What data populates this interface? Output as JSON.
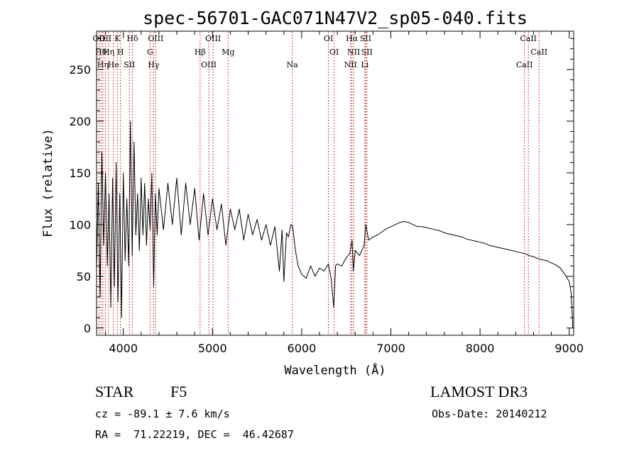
{
  "chart_data": {
    "type": "line",
    "title": "spec-56701-GAC071N47V2_sp05-040.fits",
    "xlabel": "Wavelength (Å)",
    "ylabel": "Flux (relative)",
    "xlim": [
      3700,
      9050
    ],
    "ylim": [
      -7,
      287
    ],
    "xticks": [
      4000,
      5000,
      6000,
      7000,
      8000,
      9000
    ],
    "xtick_labels": [
      "4000",
      "5000",
      "6000",
      "7000",
      "8000",
      "9000"
    ],
    "yticks": [
      0,
      50,
      100,
      150,
      200,
      250
    ],
    "ytick_labels": [
      "0",
      "50",
      "100",
      "150",
      "200",
      "250"
    ],
    "series": [
      {
        "name": "spectrum",
        "points": [
          [
            3700,
            55
          ],
          [
            3720,
            140
          ],
          [
            3740,
            30
          ],
          [
            3760,
            170
          ],
          [
            3780,
            80
          ],
          [
            3800,
            150
          ],
          [
            3820,
            60
          ],
          [
            3840,
            130
          ],
          [
            3860,
            20
          ],
          [
            3880,
            145
          ],
          [
            3900,
            40
          ],
          [
            3920,
            160
          ],
          [
            3940,
            25
          ],
          [
            3960,
            130
          ],
          [
            3980,
            10
          ],
          [
            4000,
            150
          ],
          [
            4020,
            65
          ],
          [
            4040,
            125
          ],
          [
            4060,
            60
          ],
          [
            4080,
            200
          ],
          [
            4100,
            70
          ],
          [
            4120,
            180
          ],
          [
            4140,
            90
          ],
          [
            4160,
            130
          ],
          [
            4180,
            75
          ],
          [
            4200,
            145
          ],
          [
            4220,
            90
          ],
          [
            4240,
            140
          ],
          [
            4260,
            80
          ],
          [
            4280,
            125
          ],
          [
            4300,
            95
          ],
          [
            4320,
            150
          ],
          [
            4340,
            40
          ],
          [
            4360,
            130
          ],
          [
            4380,
            90
          ],
          [
            4400,
            135
          ],
          [
            4450,
            95
          ],
          [
            4500,
            140
          ],
          [
            4550,
            100
          ],
          [
            4600,
            145
          ],
          [
            4650,
            90
          ],
          [
            4700,
            140
          ],
          [
            4750,
            100
          ],
          [
            4800,
            135
          ],
          [
            4850,
            85
          ],
          [
            4900,
            130
          ],
          [
            4950,
            90
          ],
          [
            5000,
            125
          ],
          [
            5050,
            95
          ],
          [
            5100,
            120
          ],
          [
            5150,
            80
          ],
          [
            5200,
            115
          ],
          [
            5250,
            95
          ],
          [
            5300,
            115
          ],
          [
            5350,
            85
          ],
          [
            5400,
            110
          ],
          [
            5450,
            90
          ],
          [
            5500,
            105
          ],
          [
            5550,
            85
          ],
          [
            5600,
            100
          ],
          [
            5650,
            80
          ],
          [
            5700,
            98
          ],
          [
            5750,
            55
          ],
          [
            5780,
            95
          ],
          [
            5800,
            45
          ],
          [
            5830,
            92
          ],
          [
            5850,
            88
          ],
          [
            5880,
            100
          ],
          [
            5900,
            98
          ],
          [
            5930,
            75
          ],
          [
            5960,
            60
          ],
          [
            6000,
            52
          ],
          [
            6050,
            48
          ],
          [
            6100,
            60
          ],
          [
            6150,
            50
          ],
          [
            6200,
            58
          ],
          [
            6250,
            55
          ],
          [
            6300,
            62
          ],
          [
            6330,
            48
          ],
          [
            6360,
            20
          ],
          [
            6380,
            60
          ],
          [
            6400,
            62
          ],
          [
            6450,
            60
          ],
          [
            6500,
            68
          ],
          [
            6540,
            72
          ],
          [
            6565,
            85
          ],
          [
            6580,
            55
          ],
          [
            6600,
            75
          ],
          [
            6650,
            70
          ],
          [
            6700,
            80
          ],
          [
            6720,
            100
          ],
          [
            6750,
            85
          ],
          [
            6800,
            88
          ],
          [
            6850,
            90
          ],
          [
            6900,
            93
          ],
          [
            6950,
            96
          ],
          [
            7000,
            98
          ],
          [
            7050,
            100
          ],
          [
            7100,
            102
          ],
          [
            7150,
            103
          ],
          [
            7200,
            102
          ],
          [
            7250,
            100
          ],
          [
            7300,
            98
          ],
          [
            7350,
            98
          ],
          [
            7400,
            97
          ],
          [
            7450,
            96
          ],
          [
            7500,
            95
          ],
          [
            7550,
            94
          ],
          [
            7600,
            92
          ],
          [
            7650,
            91
          ],
          [
            7700,
            90
          ],
          [
            7750,
            89
          ],
          [
            7800,
            88
          ],
          [
            7850,
            86
          ],
          [
            7900,
            85
          ],
          [
            7950,
            84
          ],
          [
            8000,
            83
          ],
          [
            8050,
            82
          ],
          [
            8100,
            80
          ],
          [
            8150,
            79
          ],
          [
            8200,
            78
          ],
          [
            8250,
            77
          ],
          [
            8300,
            76
          ],
          [
            8350,
            75
          ],
          [
            8400,
            74
          ],
          [
            8450,
            73
          ],
          [
            8500,
            72
          ],
          [
            8550,
            70
          ],
          [
            8600,
            69
          ],
          [
            8650,
            67
          ],
          [
            8700,
            66
          ],
          [
            8750,
            65
          ],
          [
            8800,
            63
          ],
          [
            8850,
            61
          ],
          [
            8900,
            58
          ],
          [
            8950,
            52
          ],
          [
            9000,
            45
          ],
          [
            9020,
            35
          ],
          [
            9030,
            20
          ],
          [
            9040,
            0
          ]
        ]
      }
    ],
    "lines": [
      {
        "wl": 3727,
        "label": "OII"
      },
      {
        "wl": 3750,
        "label": "Hθ"
      },
      {
        "wl": 3771,
        "label": "Hη"
      },
      {
        "wl": 3798,
        "label": "OII"
      },
      {
        "wl": 3835,
        "label": "Hη"
      },
      {
        "wl": 3889,
        "label": "He"
      },
      {
        "wl": 3934,
        "label": "K"
      },
      {
        "wl": 3968,
        "label": "H"
      },
      {
        "wl": 4068,
        "label": "SII"
      },
      {
        "wl": 4102,
        "label": "Hδ"
      },
      {
        "wl": 4300,
        "label": "G"
      },
      {
        "wl": 4340,
        "label": "Hγ"
      },
      {
        "wl": 4363,
        "label": "OIII"
      },
      {
        "wl": 4861,
        "label": "Hβ"
      },
      {
        "wl": 4959,
        "label": "OIII"
      },
      {
        "wl": 5007,
        "label": "OIII"
      },
      {
        "wl": 5175,
        "label": "Mg"
      },
      {
        "wl": 5894,
        "label": "Na"
      },
      {
        "wl": 6300,
        "label": "OI"
      },
      {
        "wl": 6364,
        "label": "OI"
      },
      {
        "wl": 6548,
        "label": "NII"
      },
      {
        "wl": 6563,
        "label": "Hα"
      },
      {
        "wl": 6583,
        "label": "NII"
      },
      {
        "wl": 6708,
        "label": "Li"
      },
      {
        "wl": 6716,
        "label": "SII"
      },
      {
        "wl": 6731,
        "label": "SII"
      },
      {
        "wl": 8498,
        "label": "CaII"
      },
      {
        "wl": 8542,
        "label": "CaII"
      },
      {
        "wl": 8662,
        "label": "CaII"
      }
    ]
  },
  "info": {
    "class": "STAR",
    "subclass": "F5",
    "survey": "LAMOST DR3",
    "cz": "cz = -89.1 ± 7.6 km/s",
    "obs_date": "Obs-Date: 20140212",
    "coords": "RA =  71.22219, DEC =  46.42687"
  },
  "colors": {
    "line": "#c00000",
    "spectrum": "#000000"
  }
}
